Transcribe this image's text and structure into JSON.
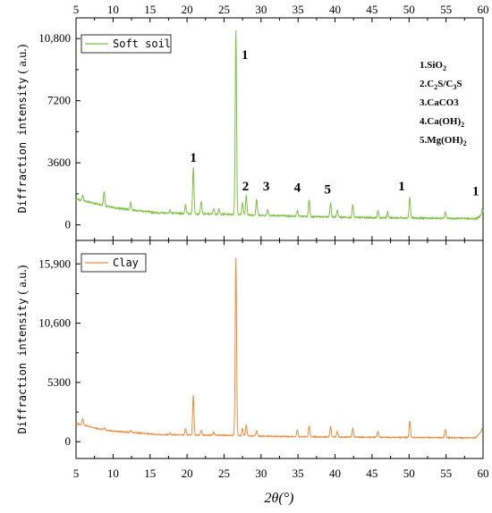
{
  "chart_data": [
    {
      "type": "line",
      "panel": "top",
      "ylabel": "Diffraction intensity",
      "ylabel_unit": "( a.u.)",
      "xlim": [
        5,
        60
      ],
      "ylim": [
        -900,
        12000
      ],
      "yticks": [
        0,
        3600,
        7200,
        10800
      ],
      "ytick_labels": [
        "0",
        "3600",
        "7200",
        "10,800"
      ],
      "xticks": [
        5,
        10,
        15,
        20,
        25,
        30,
        35,
        40,
        45,
        50,
        55,
        60
      ],
      "legend": "top-left",
      "series": [
        {
          "name": "Soft soil",
          "color": "#7cc142",
          "baseline": [
            [
              5,
              1500
            ],
            [
              6,
              1400
            ],
            [
              8,
              1200
            ],
            [
              10,
              1000
            ],
            [
              13,
              850
            ],
            [
              16,
              700
            ],
            [
              20,
              650
            ],
            [
              25,
              620
            ],
            [
              30,
              560
            ],
            [
              35,
              500
            ],
            [
              40,
              450
            ],
            [
              45,
              420
            ],
            [
              50,
              400
            ],
            [
              55,
              380
            ],
            [
              59,
              360
            ],
            [
              60,
              600
            ]
          ],
          "peaks": [
            [
              5.9,
              1720
            ],
            [
              8.8,
              1950
            ],
            [
              12.4,
              1300
            ],
            [
              17.7,
              850
            ],
            [
              19.8,
              1200
            ],
            [
              20.85,
              3350
            ],
            [
              21.9,
              1350
            ],
            [
              23.6,
              950
            ],
            [
              24.3,
              900
            ],
            [
              26.6,
              11300
            ],
            [
              27.5,
              1300
            ],
            [
              28.0,
              1700
            ],
            [
              29.4,
              1500
            ],
            [
              30.9,
              900
            ],
            [
              34.9,
              850
            ],
            [
              36.5,
              1450
            ],
            [
              39.4,
              1250
            ],
            [
              40.3,
              850
            ],
            [
              42.4,
              1150
            ],
            [
              45.8,
              850
            ],
            [
              47.1,
              750
            ],
            [
              50.1,
              1600
            ],
            [
              54.9,
              750
            ],
            [
              59.9,
              950
            ]
          ]
        }
      ],
      "annotations": [
        {
          "x": 20.85,
          "y": 3350,
          "text": "1"
        },
        {
          "x": 26.6,
          "y": 11300,
          "text": "1"
        },
        {
          "x": 27.9,
          "y": 1700,
          "text": "2"
        },
        {
          "x": 30.7,
          "y": 1700,
          "text": "3"
        },
        {
          "x": 34.9,
          "y": 1600,
          "text": "4"
        },
        {
          "x": 39.0,
          "y": 1500,
          "text": "5"
        },
        {
          "x": 49.0,
          "y": 1700,
          "text": "1"
        },
        {
          "x": 59.0,
          "y": 1400,
          "text": "1"
        }
      ],
      "key": [
        {
          "main": "1.SiO",
          "sub1": "2",
          "mid": "",
          "sub2": "",
          "tail": ""
        },
        {
          "main": "2.C",
          "sub1": "2",
          "mid": "S/C",
          "sub2": "3",
          "tail": "S"
        },
        {
          "main": "3.CaCO3",
          "sub1": "",
          "mid": "",
          "sub2": "",
          "tail": ""
        },
        {
          "main": "4.Ca(OH)",
          "sub1": "2",
          "mid": "",
          "sub2": "",
          "tail": ""
        },
        {
          "main": "5.Mg(OH)",
          "sub1": "2",
          "mid": "",
          "sub2": "",
          "tail": ""
        }
      ]
    },
    {
      "type": "line",
      "panel": "bottom",
      "ylabel": "Diffraction intensity",
      "ylabel_unit": "( a.u.)",
      "xlabel": "2θ(°)",
      "xlim": [
        5,
        60
      ],
      "ylim": [
        -1500,
        18000
      ],
      "yticks": [
        0,
        5300,
        10600,
        15900
      ],
      "ytick_labels": [
        "0",
        "5300",
        "10,600",
        "15,900"
      ],
      "xticks": [
        5,
        10,
        15,
        20,
        25,
        30,
        35,
        40,
        45,
        50,
        55,
        60
      ],
      "xtick_labels": [
        "5",
        "10",
        "15",
        "20",
        "25",
        "30",
        "35",
        "40",
        "45",
        "50",
        "55",
        "60"
      ],
      "legend": "top-left",
      "series": [
        {
          "name": "Clay",
          "color": "#f08a3c",
          "baseline": [
            [
              5,
              1600
            ],
            [
              6,
              1500
            ],
            [
              8,
              1150
            ],
            [
              10,
              950
            ],
            [
              13,
              800
            ],
            [
              16,
              650
            ],
            [
              20,
              600
            ],
            [
              25,
              580
            ],
            [
              30,
              500
            ],
            [
              35,
              450
            ],
            [
              40,
              420
            ],
            [
              45,
              400
            ],
            [
              50,
              380
            ],
            [
              55,
              360
            ],
            [
              59,
              350
            ],
            [
              60,
              1100
            ]
          ],
          "peaks": [
            [
              5.9,
              2050
            ],
            [
              8.8,
              1250
            ],
            [
              12.4,
              1000
            ],
            [
              17.7,
              800
            ],
            [
              19.8,
              1200
            ],
            [
              20.85,
              4200
            ],
            [
              21.9,
              1000
            ],
            [
              23.6,
              850
            ],
            [
              26.6,
              16500
            ],
            [
              27.5,
              1200
            ],
            [
              28.0,
              1500
            ],
            [
              29.4,
              1000
            ],
            [
              34.9,
              1050
            ],
            [
              36.5,
              1400
            ],
            [
              39.4,
              1350
            ],
            [
              40.3,
              900
            ],
            [
              42.4,
              1200
            ],
            [
              45.8,
              950
            ],
            [
              50.1,
              1850
            ],
            [
              54.9,
              1100
            ],
            [
              59.9,
              1200
            ]
          ]
        }
      ]
    }
  ]
}
